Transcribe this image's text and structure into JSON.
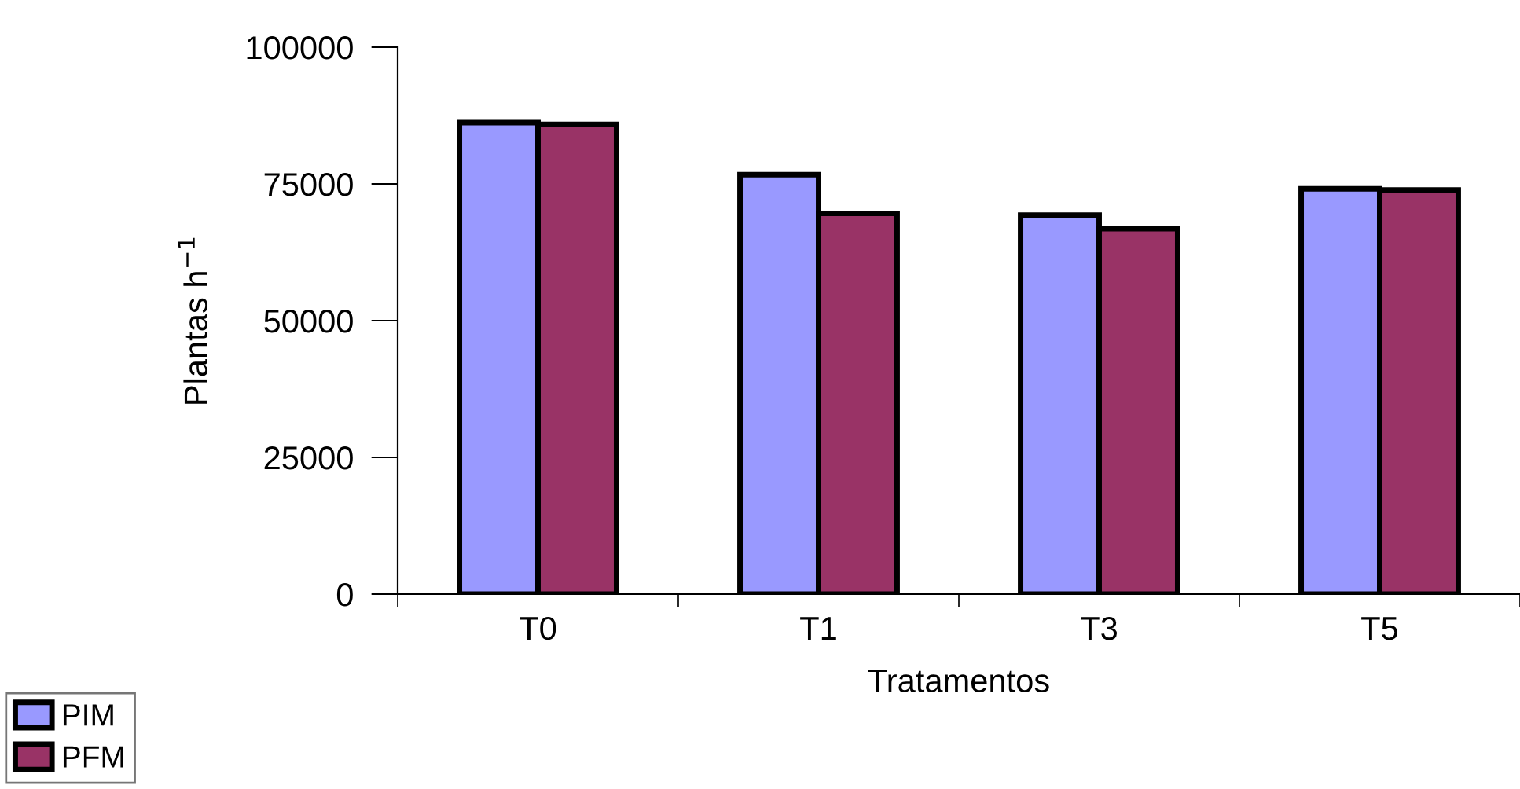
{
  "chart_data": {
    "type": "bar",
    "xlabel": "Tratamentos",
    "ylabel": "Plantas h$^{−1}$",
    "categories": [
      "T0",
      "T1",
      "T3",
      "T5"
    ],
    "series": [
      {
        "name": "PIM",
        "color": "#9999ff",
        "values": [
          86200,
          76700,
          69300,
          74100
        ]
      },
      {
        "name": "PFM",
        "color": "#993366",
        "values": [
          85900,
          69600,
          66800,
          73900
        ]
      }
    ],
    "ylim": [
      0,
      100000
    ],
    "yticks": [
      0,
      25000,
      50000,
      75000,
      100000
    ],
    "grid": false,
    "legend": "bottom left"
  }
}
